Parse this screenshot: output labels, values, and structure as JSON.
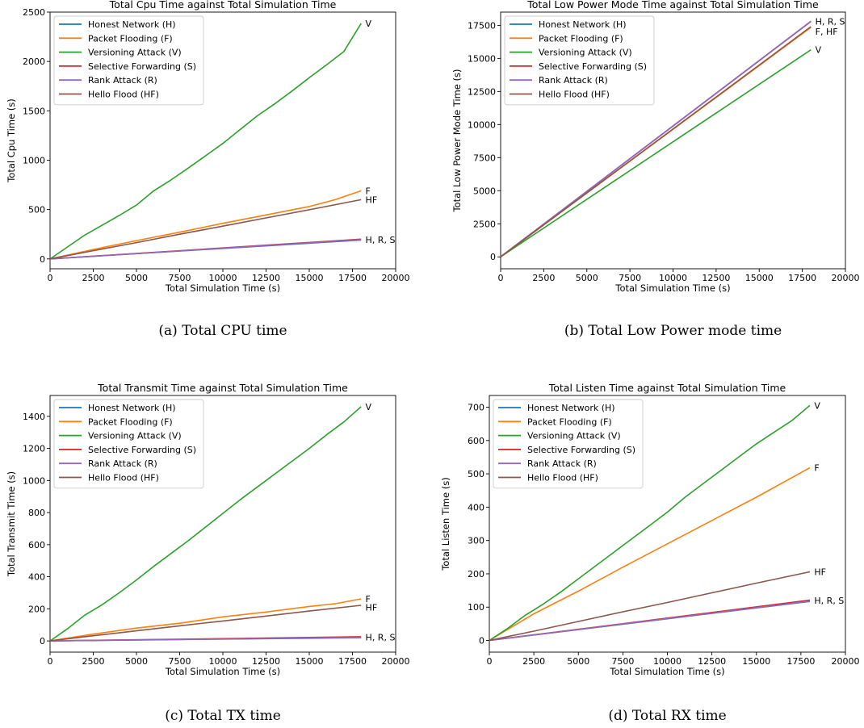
{
  "chart_data": [
    {
      "type": "line",
      "title": "Total Cpu Time against Total Simulation Time",
      "xlabel": "Total Simulation Time (s)",
      "ylabel": "Total Cpu Time (s)",
      "xlim": [
        0,
        20000
      ],
      "ylim": [
        -100,
        2500
      ],
      "xticks": [
        0,
        2500,
        5000,
        7500,
        10000,
        12500,
        15000,
        17500,
        20000
      ],
      "yticks": [
        0,
        500,
        1000,
        1500,
        2000,
        2500
      ],
      "legend_position": "top-left",
      "grid": false,
      "caption": "(a) Total CPU time",
      "series": [
        {
          "name": "Honest Network (H)",
          "color": "#1f77b4",
          "x": [
            0,
            18000
          ],
          "y": [
            0,
            190
          ]
        },
        {
          "name": "Packet Flooding (F)",
          "color": "#ff7f0e",
          "x": [
            0,
            2500,
            5000,
            7500,
            10000,
            12500,
            15000,
            16500,
            18000
          ],
          "y": [
            0,
            95,
            185,
            270,
            360,
            445,
            530,
            600,
            690
          ]
        },
        {
          "name": "Versioning Attack (V)",
          "color": "#2ca02c",
          "x": [
            0,
            1000,
            2000,
            3000,
            4000,
            5000,
            6000,
            7000,
            8000,
            9000,
            10000,
            11000,
            12000,
            13000,
            14000,
            15000,
            16000,
            17000,
            18000
          ],
          "y": [
            0,
            120,
            240,
            340,
            440,
            545,
            690,
            800,
            920,
            1045,
            1170,
            1310,
            1450,
            1570,
            1700,
            1835,
            1965,
            2100,
            2385
          ]
        },
        {
          "name": "Selective Forwarding (S)",
          "color": "#d62728",
          "x": [
            0,
            18000
          ],
          "y": [
            0,
            200
          ]
        },
        {
          "name": "Rank Attack (R)",
          "color": "#9467bd",
          "x": [
            0,
            18000
          ],
          "y": [
            0,
            195
          ]
        },
        {
          "name": "Hello Flood (HF)",
          "color": "#8c564b",
          "x": [
            0,
            2500,
            5000,
            7500,
            10000,
            12500,
            15000,
            18000
          ],
          "y": [
            0,
            83,
            165,
            250,
            332,
            415,
            498,
            600
          ]
        }
      ],
      "annotations": [
        {
          "text": "V",
          "x": 18250,
          "y": 2385
        },
        {
          "text": "F",
          "x": 18250,
          "y": 690
        },
        {
          "text": "HF",
          "x": 18250,
          "y": 600
        },
        {
          "text": "H, R, S",
          "x": 18250,
          "y": 195
        }
      ]
    },
    {
      "type": "line",
      "title": "Total Low Power Mode Time against Total Simulation Time",
      "xlabel": "Total Simulation Time (s)",
      "ylabel": "Total Low Power Mode Time (s)",
      "xlim": [
        0,
        20000
      ],
      "ylim": [
        -900,
        18500
      ],
      "xticks": [
        0,
        2500,
        5000,
        7500,
        10000,
        12500,
        15000,
        17500,
        20000
      ],
      "yticks": [
        0,
        2500,
        5000,
        7500,
        10000,
        12500,
        15000,
        17500
      ],
      "legend_position": "top-left",
      "grid": false,
      "caption": "(b) Total Low Power mode time",
      "series": [
        {
          "name": "Honest Network (H)",
          "color": "#1f77b4",
          "x": [
            0,
            18000
          ],
          "y": [
            0,
            17800
          ]
        },
        {
          "name": "Packet Flooding (F)",
          "color": "#ff7f0e",
          "x": [
            0,
            18000
          ],
          "y": [
            0,
            17350
          ]
        },
        {
          "name": "Versioning Attack (V)",
          "color": "#2ca02c",
          "x": [
            0,
            18000
          ],
          "y": [
            0,
            15650
          ]
        },
        {
          "name": "Selective Forwarding (S)",
          "color": "#d62728",
          "x": [
            0,
            18000
          ],
          "y": [
            0,
            17800
          ]
        },
        {
          "name": "Rank Attack (R)",
          "color": "#9467bd",
          "x": [
            0,
            18000
          ],
          "y": [
            0,
            17810
          ]
        },
        {
          "name": "Hello Flood (HF)",
          "color": "#8c564b",
          "x": [
            0,
            18000
          ],
          "y": [
            0,
            17400
          ]
        }
      ],
      "annotations": [
        {
          "text": "H, R, S",
          "x": 18250,
          "y": 17800
        },
        {
          "text": "F, HF",
          "x": 18250,
          "y": 17050
        },
        {
          "text": "V",
          "x": 18250,
          "y": 15650
        }
      ]
    },
    {
      "type": "line",
      "title": "Total Transmit Time against Total Simulation Time",
      "xlabel": "Total Simulation Time (s)",
      "ylabel": "Total Transmit Time (s)",
      "xlim": [
        0,
        20000
      ],
      "ylim": [
        -70,
        1530
      ],
      "xticks": [
        0,
        2500,
        5000,
        7500,
        10000,
        12500,
        15000,
        17500,
        20000
      ],
      "yticks": [
        0,
        200,
        400,
        600,
        800,
        1000,
        1200,
        1400
      ],
      "legend_position": "top-left",
      "grid": false,
      "caption": "(c) Total TX time",
      "series": [
        {
          "name": "Honest Network (H)",
          "color": "#1f77b4",
          "x": [
            0,
            18000
          ],
          "y": [
            0,
            20
          ]
        },
        {
          "name": "Packet Flooding (F)",
          "color": "#ff7f0e",
          "x": [
            0,
            2500,
            5000,
            7500,
            10000,
            12500,
            15000,
            16500,
            18000
          ],
          "y": [
            0,
            42,
            80,
            110,
            150,
            180,
            215,
            232,
            262
          ]
        },
        {
          "name": "Versioning Attack (V)",
          "color": "#2ca02c",
          "x": [
            0,
            1000,
            2000,
            3000,
            4000,
            5000,
            6000,
            7000,
            8000,
            9000,
            10000,
            11000,
            12000,
            13000,
            14000,
            15000,
            16000,
            17000,
            18000
          ],
          "y": [
            0,
            75,
            160,
            225,
            300,
            380,
            465,
            545,
            625,
            710,
            795,
            880,
            960,
            1040,
            1120,
            1200,
            1285,
            1365,
            1460
          ]
        },
        {
          "name": "Selective Forwarding (S)",
          "color": "#d62728",
          "x": [
            0,
            18000
          ],
          "y": [
            0,
            26
          ]
        },
        {
          "name": "Rank Attack (R)",
          "color": "#9467bd",
          "x": [
            0,
            18000
          ],
          "y": [
            0,
            22
          ]
        },
        {
          "name": "Hello Flood (HF)",
          "color": "#8c564b",
          "x": [
            0,
            2500,
            5000,
            7500,
            10000,
            12500,
            15000,
            18000
          ],
          "y": [
            0,
            32,
            63,
            94,
            124,
            155,
            186,
            222
          ]
        }
      ],
      "annotations": [
        {
          "text": "V",
          "x": 18250,
          "y": 1460
        },
        {
          "text": "F",
          "x": 18250,
          "y": 262
        },
        {
          "text": "HF",
          "x": 18250,
          "y": 210
        },
        {
          "text": "H, R, S",
          "x": 18250,
          "y": 22
        }
      ]
    },
    {
      "type": "line",
      "title": "Total Listen Time against Total Simulation Time",
      "xlabel": "Total Simulation Time (s)",
      "ylabel": "Total Listen Time (s)",
      "xlim": [
        0,
        20000
      ],
      "ylim": [
        -35,
        735
      ],
      "xticks": [
        0,
        2500,
        5000,
        7500,
        10000,
        12500,
        15000,
        17500,
        20000
      ],
      "yticks": [
        0,
        100,
        200,
        300,
        400,
        500,
        600,
        700
      ],
      "legend_position": "top-left",
      "grid": false,
      "caption": "(d) Total RX time",
      "series": [
        {
          "name": "Honest Network (H)",
          "color": "#1f77b4",
          "x": [
            0,
            18000
          ],
          "y": [
            0,
            117
          ]
        },
        {
          "name": "Packet Flooding (F)",
          "color": "#ff7f0e",
          "x": [
            0,
            2500,
            5000,
            7500,
            10000,
            12500,
            15000,
            18000
          ],
          "y": [
            0,
            80,
            148,
            220,
            290,
            360,
            430,
            518
          ]
        },
        {
          "name": "Versioning Attack (V)",
          "color": "#2ca02c",
          "x": [
            0,
            1000,
            2000,
            3000,
            4000,
            5000,
            6000,
            7000,
            8000,
            9000,
            10000,
            11000,
            12000,
            13000,
            14000,
            15000,
            16000,
            17000,
            18000
          ],
          "y": [
            0,
            35,
            75,
            108,
            145,
            185,
            225,
            265,
            305,
            345,
            385,
            430,
            470,
            510,
            550,
            590,
            625,
            660,
            705
          ]
        },
        {
          "name": "Selective Forwarding (S)",
          "color": "#d62728",
          "x": [
            0,
            18000
          ],
          "y": [
            0,
            121
          ]
        },
        {
          "name": "Rank Attack (R)",
          "color": "#9467bd",
          "x": [
            0,
            18000
          ],
          "y": [
            0,
            118
          ]
        },
        {
          "name": "Hello Flood (HF)",
          "color": "#8c564b",
          "x": [
            0,
            2500,
            5000,
            7500,
            10000,
            12500,
            15000,
            18000
          ],
          "y": [
            0,
            28,
            57,
            86,
            114,
            143,
            172,
            206
          ]
        }
      ],
      "annotations": [
        {
          "text": "V",
          "x": 18250,
          "y": 705
        },
        {
          "text": "F",
          "x": 18250,
          "y": 518
        },
        {
          "text": "HF",
          "x": 18250,
          "y": 206
        },
        {
          "text": "H, R, S",
          "x": 18250,
          "y": 120
        }
      ]
    }
  ]
}
